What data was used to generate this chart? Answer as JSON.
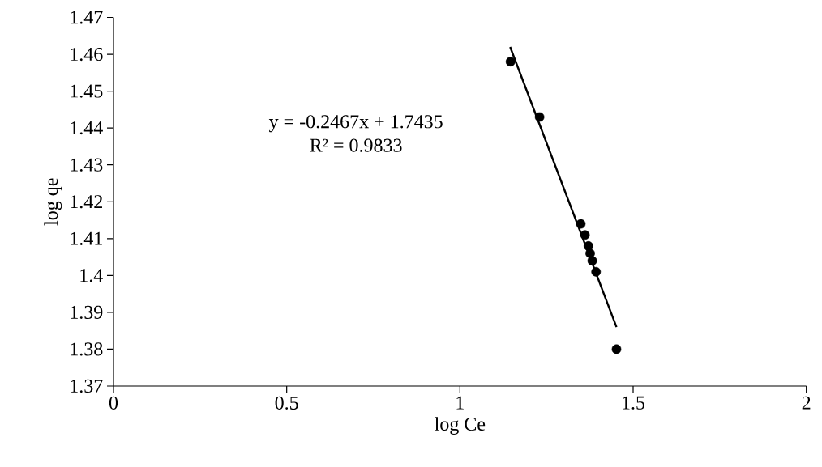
{
  "chart_data": {
    "type": "scatter",
    "xlabel": "log Ce",
    "ylabel": "log qe",
    "xlim": [
      0,
      2
    ],
    "ylim": [
      1.37,
      1.47
    ],
    "xticks": [
      0,
      0.5,
      1,
      1.5,
      2
    ],
    "yticks": [
      1.37,
      1.38,
      1.39,
      1.4,
      1.41,
      1.42,
      1.43,
      1.44,
      1.45,
      1.46,
      1.47
    ],
    "marker": "circle",
    "series": [
      {
        "color": "#000000",
        "x": [
          1.146,
          1.23,
          1.349,
          1.361,
          1.371,
          1.376,
          1.382,
          1.393,
          1.452
        ],
        "values": [
          1.458,
          1.443,
          1.414,
          1.411,
          1.408,
          1.406,
          1.404,
          1.401,
          1.38
        ]
      },
      {
        "type": "line",
        "color": "#000000",
        "marker": "none",
        "line_style": "solid",
        "x": [
          1.145,
          1.452
        ],
        "values": [
          1.462,
          1.386
        ]
      }
    ],
    "annotations": [
      "y = -0.2467x + 1.7435",
      "R² = 0.9833"
    ]
  }
}
